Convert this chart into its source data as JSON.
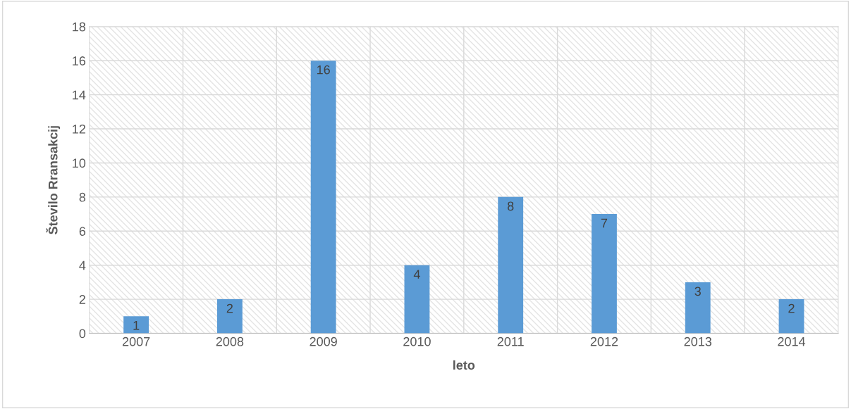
{
  "chart_data": {
    "type": "bar",
    "xlabel": "leto",
    "ylabel": "Število Rransakcij",
    "categories": [
      "2007",
      "2008",
      "2009",
      "2010",
      "2011",
      "2012",
      "2013",
      "2014"
    ],
    "values": [
      1,
      2,
      16,
      4,
      8,
      7,
      3,
      2
    ],
    "color": "#5b9bd5",
    "ylim": [
      0,
      18
    ],
    "yticks": [
      0,
      2,
      4,
      6,
      8,
      10,
      12,
      14,
      16,
      18
    ],
    "grid": true,
    "data_labels": true
  }
}
